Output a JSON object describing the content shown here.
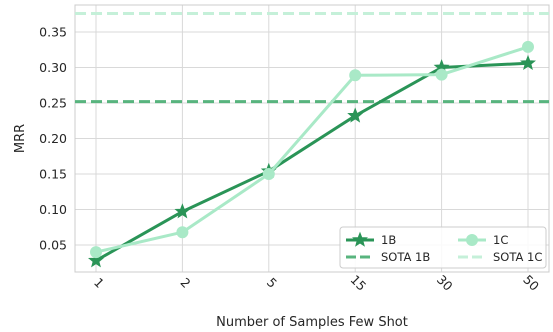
{
  "chart_data": {
    "type": "line",
    "xlabel": "Number of Samples Few Shot",
    "ylabel": "MRR",
    "categories": [
      "1",
      "2",
      "5",
      "15",
      "30",
      "50"
    ],
    "ylim": [
      0.012,
      0.388
    ],
    "yticks": [
      0.05,
      0.1,
      0.15,
      0.2,
      0.25,
      0.3,
      0.35
    ],
    "ytick_labels": [
      "0.05",
      "0.10",
      "0.15",
      "0.20",
      "0.25",
      "0.30",
      "0.35"
    ],
    "grid": true,
    "legend_position": "bottom-right",
    "series": [
      {
        "name": "1B",
        "values": [
          0.028,
          0.097,
          0.154,
          0.232,
          0.3,
          0.306
        ],
        "color": "#2a9457",
        "marker": "star"
      },
      {
        "name": "1C",
        "values": [
          0.04,
          0.068,
          0.15,
          0.289,
          0.29,
          0.329
        ],
        "color": "#a9e9c7",
        "marker": "circle"
      }
    ],
    "reference_lines": [
      {
        "name": "SOTA 1B",
        "value": 0.252,
        "color": "#58b47e",
        "style": "dashed"
      },
      {
        "name": "SOTA 1C",
        "value": 0.376,
        "color": "#c5f0d9",
        "style": "dashed"
      }
    ]
  }
}
